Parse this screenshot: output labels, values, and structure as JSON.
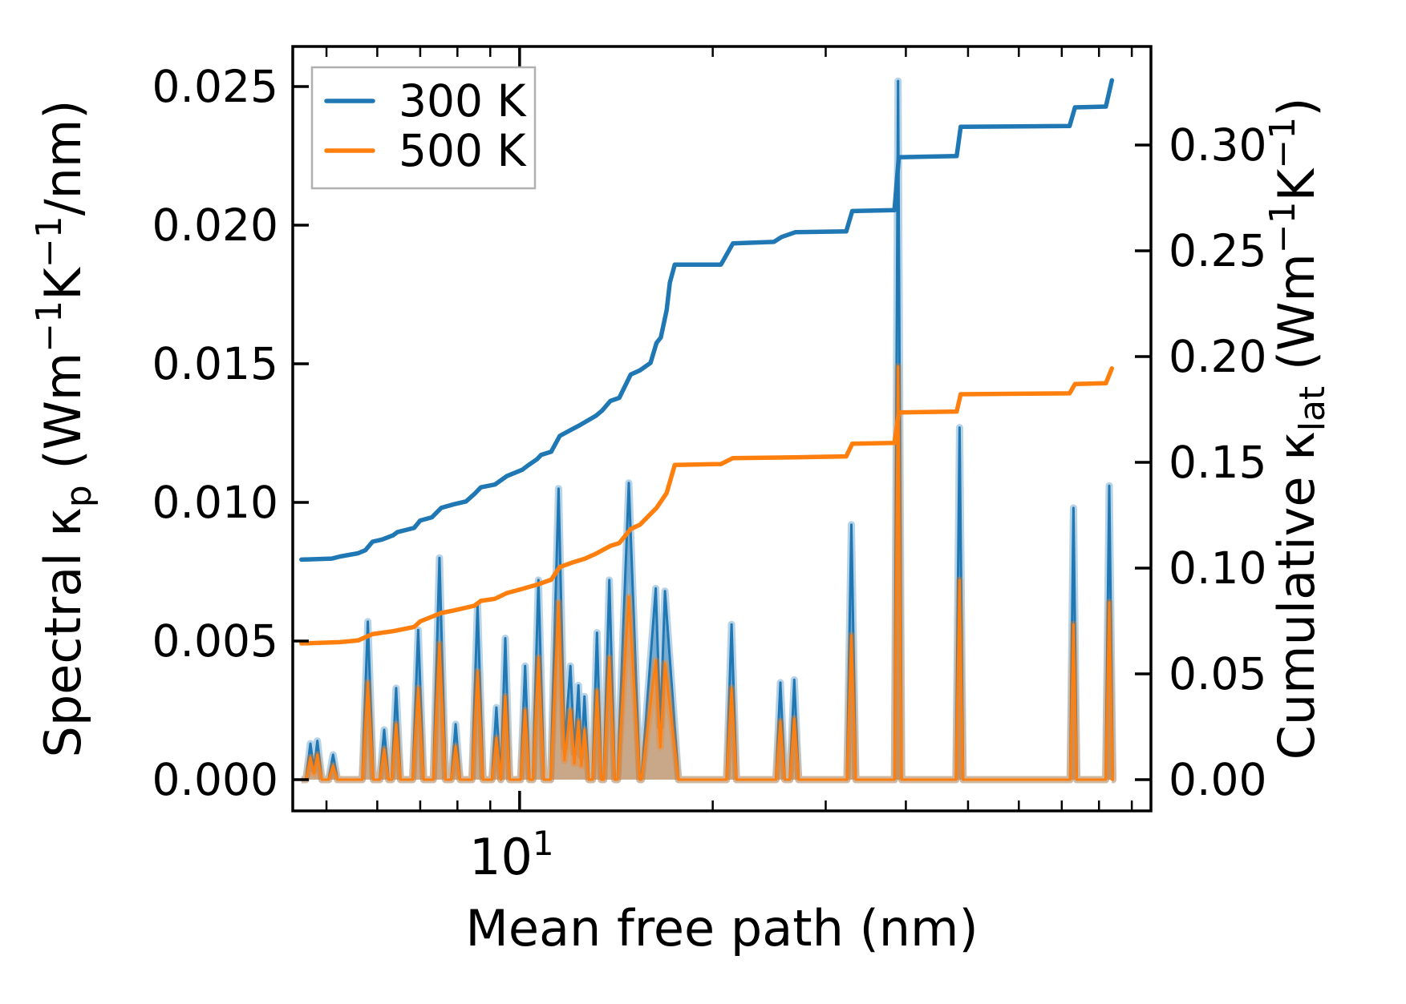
{
  "chart_data": {
    "type": "line",
    "description": "Dual-axis log-x plot: spiky spectral thermal conductivity (left axis, filled area+line) and cumulative thermal conductivity (right axis, step lines) vs phonon mean free path, at two temperatures",
    "title": "",
    "xlabel_runs": [
      [
        "Mean free path (nm)",
        "b"
      ]
    ],
    "ylabel_left_runs": [
      [
        "Spectral κ",
        "b"
      ],
      [
        "p",
        "sub"
      ],
      [
        " (Wm",
        "b"
      ],
      [
        "−1",
        "sup"
      ],
      [
        "K",
        "b"
      ],
      [
        "−1",
        "sup"
      ],
      [
        "/nm)",
        "b"
      ]
    ],
    "ylabel_right_runs": [
      [
        "Cumulative κ",
        "b"
      ],
      [
        "lat",
        "sub"
      ],
      [
        " (Wm",
        "b"
      ],
      [
        "−1",
        "sup"
      ],
      [
        "K",
        "b"
      ],
      [
        "−1",
        "sup"
      ],
      [
        ")",
        "b"
      ]
    ],
    "x_scale": "log",
    "xlim": [
      4.43,
      96.4
    ],
    "x_major_ticks": [
      {
        "nm": 10,
        "runs": [
          [
            "10",
            "b"
          ],
          [
            "1",
            "sup"
          ]
        ]
      }
    ],
    "x_minor_ticks": [
      5,
      6,
      7,
      8,
      9,
      20,
      30,
      40,
      50,
      60,
      70,
      80,
      90
    ],
    "ylim_left": [
      -0.001127,
      0.026445
    ],
    "left_ticks": [
      {
        "v": 0.0,
        "label": "0.000"
      },
      {
        "v": 0.005,
        "label": "0.005"
      },
      {
        "v": 0.01,
        "label": "0.010"
      },
      {
        "v": 0.015,
        "label": "0.015"
      },
      {
        "v": 0.02,
        "label": "0.020"
      },
      {
        "v": 0.025,
        "label": "0.025"
      }
    ],
    "ylim_right": [
      -0.014773,
      0.346591
    ],
    "right_ticks": [
      {
        "v": 0.0,
        "label": "0.00"
      },
      {
        "v": 0.05,
        "label": "0.05"
      },
      {
        "v": 0.1,
        "label": "0.10"
      },
      {
        "v": 0.15,
        "label": "0.15"
      },
      {
        "v": 0.2,
        "label": "0.20"
      },
      {
        "v": 0.25,
        "label": "0.25"
      },
      {
        "v": 0.3,
        "label": "0.30"
      }
    ],
    "legend": {
      "position": "upper-left",
      "entries": [
        {
          "label": "300 K",
          "color": "#1f77b4"
        },
        {
          "label": "500 K",
          "color": "#ff7f0e"
        }
      ]
    },
    "colors": {
      "c300": "#1f77b4",
      "c500": "#ff7f0e",
      "legend_border": "#b0b0b0",
      "axes": "#000000",
      "background": "#ffffff"
    },
    "spectral_spikes_nm_k300_k500_width": [
      [
        4.72,
        0.0013,
        0.0008
      ],
      [
        4.84,
        0.0014,
        0.0009
      ],
      [
        5.12,
        0.0009,
        0.0005
      ],
      [
        5.8,
        0.0057,
        0.0035,
        0.02
      ],
      [
        6.15,
        0.0018,
        0.0011
      ],
      [
        6.42,
        0.0033,
        0.002
      ],
      [
        6.95,
        0.0054,
        0.0033,
        0.02
      ],
      [
        7.5,
        0.008,
        0.0049,
        0.022
      ],
      [
        7.95,
        0.002,
        0.0012
      ],
      [
        8.6,
        0.0063,
        0.0039,
        0.02
      ],
      [
        9.2,
        0.0026,
        0.0015
      ],
      [
        9.5,
        0.0051,
        0.003
      ],
      [
        10.2,
        0.0041,
        0.0025
      ],
      [
        10.7,
        0.0072,
        0.0044,
        0.02
      ],
      [
        11.5,
        0.0105,
        0.0064,
        0.028
      ],
      [
        12.0,
        0.0041,
        0.0025
      ],
      [
        12.35,
        0.0034,
        0.0021
      ],
      [
        12.62,
        0.003,
        0.0018
      ],
      [
        13.2,
        0.0053,
        0.0032
      ],
      [
        13.8,
        0.0072,
        0.0044,
        0.02
      ],
      [
        14.8,
        0.0107,
        0.0066,
        0.04
      ],
      [
        16.3,
        0.0069,
        0.0043,
        0.05
      ],
      [
        16.85,
        0.0068,
        0.0042,
        0.05
      ],
      [
        21.4,
        0.0056,
        0.0033,
        0.018
      ],
      [
        25.5,
        0.0035,
        0.0021
      ],
      [
        26.8,
        0.0036,
        0.0022
      ],
      [
        32.9,
        0.0092,
        0.0052,
        0.016
      ],
      [
        38.9,
        0.0252,
        0.0149,
        0.013
      ],
      [
        48.5,
        0.0127,
        0.0072,
        0.013
      ],
      [
        73.0,
        0.0098,
        0.0056,
        0.012
      ],
      [
        83.0,
        0.0106,
        0.0064,
        0.013
      ]
    ],
    "spectral_x_range_nm": [
      4.57,
      83.8
    ],
    "cumulative_300K": [
      [
        4.57,
        0.104
      ],
      [
        5.1,
        0.1045
      ],
      [
        5.25,
        0.1055
      ],
      [
        5.6,
        0.107
      ],
      [
        5.75,
        0.1085
      ],
      [
        5.9,
        0.1125
      ],
      [
        6.1,
        0.1135
      ],
      [
        6.35,
        0.1155
      ],
      [
        6.45,
        0.117
      ],
      [
        6.85,
        0.119
      ],
      [
        7.0,
        0.1225
      ],
      [
        7.3,
        0.124
      ],
      [
        7.55,
        0.1285
      ],
      [
        7.9,
        0.1302
      ],
      [
        8.25,
        0.1315
      ],
      [
        8.5,
        0.135
      ],
      [
        8.7,
        0.1382
      ],
      [
        9.15,
        0.1395
      ],
      [
        9.55,
        0.1435
      ],
      [
        10.1,
        0.1465
      ],
      [
        10.3,
        0.1485
      ],
      [
        10.65,
        0.1515
      ],
      [
        10.8,
        0.1535
      ],
      [
        11.2,
        0.155
      ],
      [
        11.55,
        0.1625
      ],
      [
        12.05,
        0.1655
      ],
      [
        12.4,
        0.1675
      ],
      [
        12.65,
        0.169
      ],
      [
        13.15,
        0.172
      ],
      [
        13.45,
        0.1745
      ],
      [
        13.85,
        0.179
      ],
      [
        14.3,
        0.1805
      ],
      [
        14.9,
        0.1915
      ],
      [
        15.4,
        0.1935
      ],
      [
        16.0,
        0.197
      ],
      [
        16.35,
        0.2065
      ],
      [
        16.6,
        0.209
      ],
      [
        16.95,
        0.222
      ],
      [
        17.15,
        0.235
      ],
      [
        17.45,
        0.2435
      ],
      [
        20.6,
        0.2435
      ],
      [
        21.5,
        0.2535
      ],
      [
        24.9,
        0.2542
      ],
      [
        25.6,
        0.2565
      ],
      [
        26.9,
        0.2588
      ],
      [
        32.3,
        0.2592
      ],
      [
        33.0,
        0.2688
      ],
      [
        38.4,
        0.2692
      ],
      [
        39.0,
        0.2942
      ],
      [
        48.0,
        0.2948
      ],
      [
        48.7,
        0.3086
      ],
      [
        72.0,
        0.309
      ],
      [
        73.4,
        0.3178
      ],
      [
        82.0,
        0.3182
      ],
      [
        83.8,
        0.3306
      ]
    ],
    "cumulative_500K": [
      [
        4.57,
        0.0644
      ],
      [
        5.25,
        0.065
      ],
      [
        5.6,
        0.0658
      ],
      [
        5.9,
        0.0688
      ],
      [
        6.35,
        0.0702
      ],
      [
        6.85,
        0.0722
      ],
      [
        7.0,
        0.0748
      ],
      [
        7.55,
        0.0788
      ],
      [
        7.9,
        0.08
      ],
      [
        8.5,
        0.0822
      ],
      [
        8.7,
        0.0845
      ],
      [
        9.15,
        0.0855
      ],
      [
        9.55,
        0.0882
      ],
      [
        10.1,
        0.0902
      ],
      [
        10.65,
        0.0922
      ],
      [
        11.2,
        0.0945
      ],
      [
        11.55,
        0.1005
      ],
      [
        12.05,
        0.1025
      ],
      [
        12.65,
        0.1045
      ],
      [
        13.15,
        0.1068
      ],
      [
        13.85,
        0.1105
      ],
      [
        14.3,
        0.1118
      ],
      [
        14.9,
        0.1185
      ],
      [
        15.4,
        0.1205
      ],
      [
        16.35,
        0.1285
      ],
      [
        16.95,
        0.1355
      ],
      [
        17.45,
        0.1488
      ],
      [
        20.6,
        0.1492
      ],
      [
        21.5,
        0.152
      ],
      [
        26.9,
        0.1524
      ],
      [
        32.3,
        0.1528
      ],
      [
        33.0,
        0.1588
      ],
      [
        38.4,
        0.1592
      ],
      [
        39.0,
        0.1736
      ],
      [
        48.0,
        0.174
      ],
      [
        48.7,
        0.1822
      ],
      [
        72.0,
        0.1826
      ],
      [
        73.4,
        0.187
      ],
      [
        82.0,
        0.1874
      ],
      [
        83.8,
        0.1944
      ]
    ]
  }
}
